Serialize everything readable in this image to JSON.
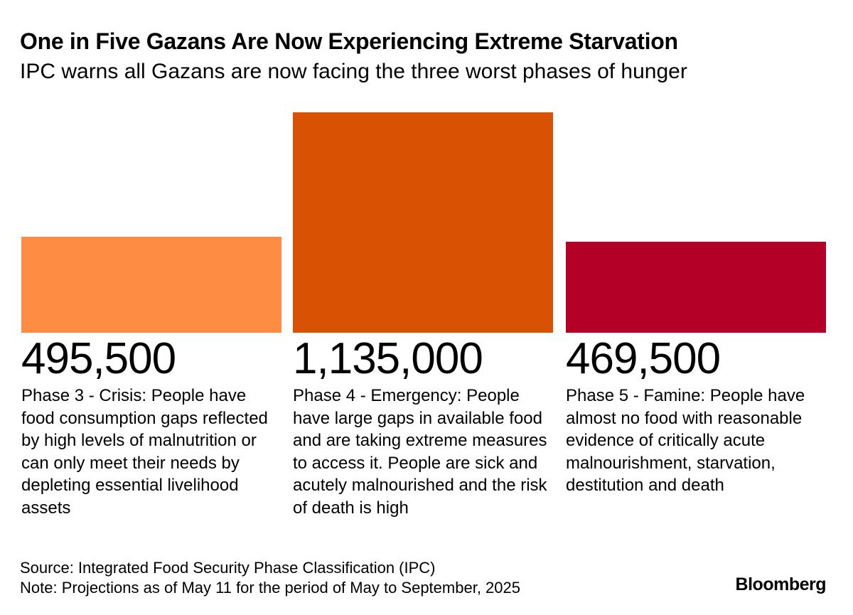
{
  "chart_data": {
    "type": "bar",
    "title": "One in Five Gazans Are Now Experiencing Extreme Starvation",
    "subtitle": "IPC warns all Gazans are now facing the three worst phases of hunger",
    "categories": [
      "Phase 3 - Crisis",
      "Phase 4 - Emergency",
      "Phase 5 - Famine"
    ],
    "values": [
      495500,
      1135000,
      469500
    ],
    "value_labels": [
      "495,500",
      "1,135,000",
      "469,500"
    ],
    "descriptions": [
      "Phase 3 - Crisis: People have food consumption gaps reflected by high levels of malnutrition or can only meet their needs by depleting essential livelihood assets",
      "Phase 4 - Emergency: People have large gaps in available food and are taking extreme measures to access it. People are sick and acutely malnourished and the risk of death is high",
      "Phase 5 - Famine: People have almost no food with reasonable evidence of critically acute malnourishment, starvation, destitution and death"
    ],
    "colors": [
      "#ff8c42",
      "#d95204",
      "#b40026"
    ],
    "xlabel": "",
    "ylabel": "",
    "grid": false,
    "legend": "none"
  },
  "footer": {
    "source": "Source: Integrated Food Security Phase Classification (IPC)",
    "note": "Note: Projections as of May 11 for the period of May to September, 2025",
    "brand": "Bloomberg"
  }
}
